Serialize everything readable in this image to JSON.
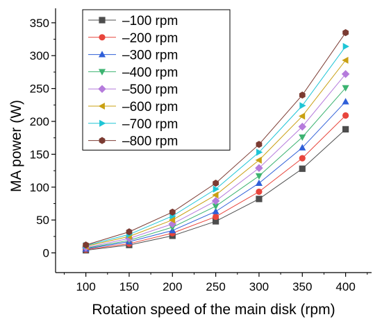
{
  "chart_data": {
    "type": "line",
    "title": "",
    "xlabel": "Rotation speed of the main disk (rpm)",
    "ylabel": "MA power (W)",
    "x": [
      100,
      150,
      200,
      250,
      300,
      350,
      400
    ],
    "x_ticks": [
      100,
      150,
      200,
      250,
      300,
      350,
      400
    ],
    "y_ticks": [
      0,
      50,
      100,
      150,
      200,
      250,
      300,
      350
    ],
    "xlim": [
      65,
      430
    ],
    "ylim": [
      -30,
      372
    ],
    "legend_position": "top-left",
    "grid": false,
    "series": [
      {
        "name": "–100 rpm",
        "color": "#4d4d4d",
        "marker": "square",
        "values": [
          4,
          12,
          26,
          48,
          82,
          128,
          188
        ]
      },
      {
        "name": "–200 rpm",
        "color": "#e8453c",
        "marker": "circle",
        "values": [
          5,
          14,
          30,
          55,
          93,
          144,
          209
        ]
      },
      {
        "name": "–300 rpm",
        "color": "#2f5fd8",
        "marker": "triangle-up",
        "values": [
          6,
          17,
          34,
          63,
          106,
          160,
          230
        ]
      },
      {
        "name": "–400 rpm",
        "color": "#3cb371",
        "marker": "triangle-down",
        "values": [
          7,
          19,
          39,
          71,
          117,
          176,
          251
        ]
      },
      {
        "name": "–500 rpm",
        "color": "#b57bdc",
        "marker": "diamond",
        "values": [
          8,
          22,
          44,
          79,
          129,
          192,
          272
        ]
      },
      {
        "name": "–600 rpm",
        "color": "#c9a012",
        "marker": "triangle-left",
        "values": [
          10,
          25,
          50,
          88,
          141,
          208,
          293
        ]
      },
      {
        "name": "–700 rpm",
        "color": "#1ec5d6",
        "marker": "triangle-right",
        "values": [
          11,
          28,
          56,
          97,
          153,
          224,
          314
        ]
      },
      {
        "name": "–800 rpm",
        "color": "#7b3b32",
        "marker": "hexagon",
        "values": [
          12,
          32,
          62,
          106,
          165,
          240,
          335
        ]
      }
    ]
  }
}
